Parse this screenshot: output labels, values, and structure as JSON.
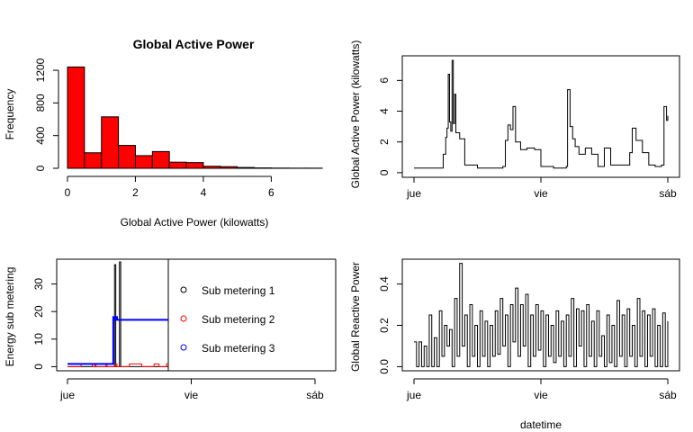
{
  "chart_data": [
    {
      "id": "hist",
      "type": "bar",
      "title": "Global Active Power",
      "xlabel": "Global Active Power (kilowatts)",
      "ylabel": "Frequency",
      "bin_edges": [
        0,
        0.5,
        1.0,
        1.5,
        2.0,
        2.5,
        3.0,
        3.5,
        4.0,
        4.5,
        5.0,
        5.5,
        6.0,
        6.5,
        7.0,
        7.5
      ],
      "values": [
        1240,
        190,
        630,
        280,
        155,
        205,
        75,
        70,
        25,
        20,
        10,
        5,
        3,
        2,
        2
      ],
      "xlim": [
        0,
        7.5
      ],
      "ylim": [
        0,
        1300
      ],
      "x_ticks": [
        {
          "v": 0,
          "label": "0"
        },
        {
          "v": 2,
          "label": "2"
        },
        {
          "v": 4,
          "label": "4"
        },
        {
          "v": 6,
          "label": "6"
        }
      ],
      "y_ticks": [
        {
          "v": 0,
          "label": "0"
        },
        {
          "v": 400,
          "label": "400"
        },
        {
          "v": 800,
          "label": "800"
        },
        {
          "v": 1200,
          "label": "1200"
        }
      ],
      "bar_color": "#ff0000"
    },
    {
      "id": "gap",
      "type": "line",
      "xlabel": "",
      "ylabel": "Global Active Power (kilowatts)",
      "xlim": [
        0,
        2
      ],
      "ylim": [
        -0.3,
        7.6
      ],
      "x_ticks": [
        {
          "v": 0,
          "label": "jue"
        },
        {
          "v": 1,
          "label": "vie"
        },
        {
          "v": 2,
          "label": "sáb"
        }
      ],
      "y_ticks": [
        {
          "v": 0,
          "label": "0"
        },
        {
          "v": 2,
          "label": "2"
        },
        {
          "v": 4,
          "label": "4"
        },
        {
          "v": 6,
          "label": "6"
        }
      ],
      "x": [
        0,
        0.22,
        0.23,
        0.25,
        0.26,
        0.27,
        0.28,
        0.29,
        0.3,
        0.31,
        0.32,
        0.33,
        0.36,
        0.4,
        0.5,
        0.7,
        0.72,
        0.74,
        0.76,
        0.78,
        0.8,
        0.84,
        0.89,
        0.95,
        1.0,
        1.1,
        1.2,
        1.21,
        1.23,
        1.25,
        1.27,
        1.3,
        1.35,
        1.4,
        1.45,
        1.5,
        1.55,
        1.65,
        1.7,
        1.72,
        1.75,
        1.8,
        1.85,
        1.9,
        1.95,
        1.97,
        1.99,
        2.0
      ],
      "series": [
        {
          "values": [
            0.3,
            0.3,
            1.2,
            2.3,
            2.9,
            6.4,
            3.3,
            2.7,
            7.3,
            3.2,
            5.1,
            2.6,
            2.2,
            0.5,
            0.3,
            0.4,
            2.1,
            3.1,
            2.8,
            4.3,
            2.0,
            1.5,
            1.6,
            1.5,
            0.4,
            0.3,
            0.4,
            5.4,
            3.0,
            2.2,
            1.7,
            1.2,
            1.6,
            1.2,
            0.4,
            1.6,
            0.5,
            0.5,
            1.3,
            2.9,
            2.1,
            1.3,
            0.5,
            0.4,
            0.5,
            4.3,
            3.4,
            3.7
          ]
        }
      ]
    },
    {
      "id": "sub",
      "type": "line",
      "xlabel": "",
      "ylabel": "Energy sub metering",
      "xlim": [
        0,
        2
      ],
      "ylim": [
        -1.5,
        39
      ],
      "x_ticks": [
        {
          "v": 0,
          "label": "jue"
        },
        {
          "v": 1,
          "label": "vie"
        },
        {
          "v": 2,
          "label": "sáb"
        }
      ],
      "y_ticks": [
        {
          "v": 0,
          "label": "0"
        },
        {
          "v": 10,
          "label": "10"
        },
        {
          "v": 20,
          "label": "20"
        },
        {
          "v": 30,
          "label": "30"
        }
      ],
      "x": [
        0,
        0.1,
        0.11,
        0.2,
        0.21,
        0.22,
        0.23,
        0.24,
        0.3,
        0.31,
        0.32,
        0.36,
        0.37,
        0.38,
        0.39,
        0.4,
        0.41,
        0.42,
        0.43,
        0.44,
        0.5,
        0.6,
        0.66,
        0.67,
        0.7,
        0.74,
        0.75,
        0.8,
        0.85,
        0.86,
        0.96,
        0.97,
        1.0,
        1.1,
        1.2,
        1.3,
        1.4,
        1.5,
        1.6,
        1.7,
        1.8,
        1.9,
        2.0
      ],
      "series": [
        {
          "name": "Sub metering 1",
          "color": "#000000",
          "values": [
            0,
            0,
            0,
            0,
            0,
            0,
            0,
            0,
            0,
            0,
            0,
            0,
            0,
            37,
            0,
            0,
            0,
            38,
            0,
            0,
            0,
            0,
            0,
            0,
            0,
            0,
            0,
            0,
            0,
            0,
            0,
            0,
            0,
            0,
            0,
            0,
            0,
            0,
            0,
            0,
            0,
            0,
            0
          ]
        },
        {
          "name": "Sub metering 2",
          "color": "#ff0000",
          "values": [
            0,
            0,
            1,
            0,
            0,
            1,
            0,
            0,
            0,
            1,
            0,
            0,
            0,
            0,
            1,
            0,
            0,
            0,
            0,
            0,
            1,
            0,
            0,
            0,
            1,
            0,
            0,
            1,
            0,
            0,
            1,
            0,
            0,
            0,
            0,
            0,
            0,
            0,
            0,
            0,
            0,
            0,
            0
          ]
        },
        {
          "name": "Sub metering 3",
          "color": "#0000ff",
          "values": [
            1,
            1,
            1,
            1,
            1,
            1,
            1,
            1,
            1,
            1,
            1,
            1,
            18,
            17,
            18,
            17,
            17,
            17,
            17,
            17,
            17,
            17,
            17,
            17,
            17,
            17,
            17,
            17,
            17,
            17,
            1,
            17,
            17,
            0,
            0,
            0,
            0,
            0,
            0,
            0,
            0,
            0,
            0
          ]
        }
      ],
      "legend": "right"
    },
    {
      "id": "grp",
      "type": "line",
      "xlabel": "datetime",
      "ylabel": "Global Reactive Power",
      "xlim": [
        0,
        2
      ],
      "ylim": [
        -0.02,
        0.52
      ],
      "x_ticks": [
        {
          "v": 0,
          "label": "jue"
        },
        {
          "v": 1,
          "label": "vie"
        },
        {
          "v": 2,
          "label": "sáb"
        }
      ],
      "y_ticks": [
        {
          "v": 0,
          "label": "0.0"
        },
        {
          "v": 0.2,
          "label": "0.2"
        },
        {
          "v": 0.4,
          "label": "0.4"
        }
      ],
      "x": [
        0,
        0.02,
        0.04,
        0.06,
        0.08,
        0.1,
        0.12,
        0.14,
        0.16,
        0.18,
        0.2,
        0.22,
        0.24,
        0.26,
        0.28,
        0.3,
        0.32,
        0.34,
        0.36,
        0.38,
        0.4,
        0.42,
        0.44,
        0.46,
        0.48,
        0.5,
        0.52,
        0.54,
        0.56,
        0.58,
        0.6,
        0.62,
        0.64,
        0.66,
        0.68,
        0.7,
        0.72,
        0.74,
        0.76,
        0.78,
        0.8,
        0.82,
        0.84,
        0.86,
        0.88,
        0.9,
        0.92,
        0.94,
        0.96,
        0.98,
        1.0,
        1.02,
        1.04,
        1.06,
        1.08,
        1.1,
        1.12,
        1.14,
        1.16,
        1.18,
        1.2,
        1.22,
        1.24,
        1.26,
        1.28,
        1.3,
        1.32,
        1.34,
        1.36,
        1.38,
        1.4,
        1.42,
        1.44,
        1.46,
        1.48,
        1.5,
        1.52,
        1.54,
        1.56,
        1.58,
        1.6,
        1.62,
        1.64,
        1.66,
        1.68,
        1.7,
        1.72,
        1.74,
        1.76,
        1.78,
        1.8,
        1.82,
        1.84,
        1.86,
        1.88,
        1.9,
        1.92,
        1.94,
        1.96,
        1.98,
        2.0
      ],
      "series": [
        {
          "values": [
            0.12,
            0.0,
            0.12,
            0.0,
            0.1,
            0.0,
            0.25,
            0.0,
            0.14,
            0.0,
            0.27,
            0.05,
            0.2,
            0.1,
            0.18,
            0.0,
            0.33,
            0.05,
            0.5,
            0.1,
            0.25,
            0.0,
            0.3,
            0.05,
            0.2,
            0.0,
            0.27,
            0.05,
            0.22,
            0.0,
            0.2,
            0.05,
            0.27,
            0.06,
            0.33,
            0.1,
            0.25,
            0.0,
            0.3,
            0.12,
            0.38,
            0.05,
            0.3,
            0.1,
            0.35,
            0.0,
            0.25,
            0.05,
            0.3,
            0.08,
            0.27,
            0.0,
            0.25,
            0.05,
            0.2,
            0.02,
            0.27,
            0.05,
            0.22,
            0.0,
            0.25,
            0.05,
            0.33,
            0.0,
            0.28,
            0.1,
            0.27,
            0.0,
            0.3,
            0.05,
            0.22,
            0.0,
            0.27,
            0.05,
            0.15,
            0.0,
            0.25,
            0.02,
            0.2,
            0.0,
            0.32,
            0.05,
            0.25,
            0.0,
            0.28,
            0.05,
            0.2,
            0.0,
            0.33,
            0.05,
            0.27,
            0.0,
            0.25,
            0.05,
            0.28,
            0.0,
            0.2,
            0.0,
            0.26,
            0.0,
            0.22
          ]
        }
      ]
    }
  ]
}
